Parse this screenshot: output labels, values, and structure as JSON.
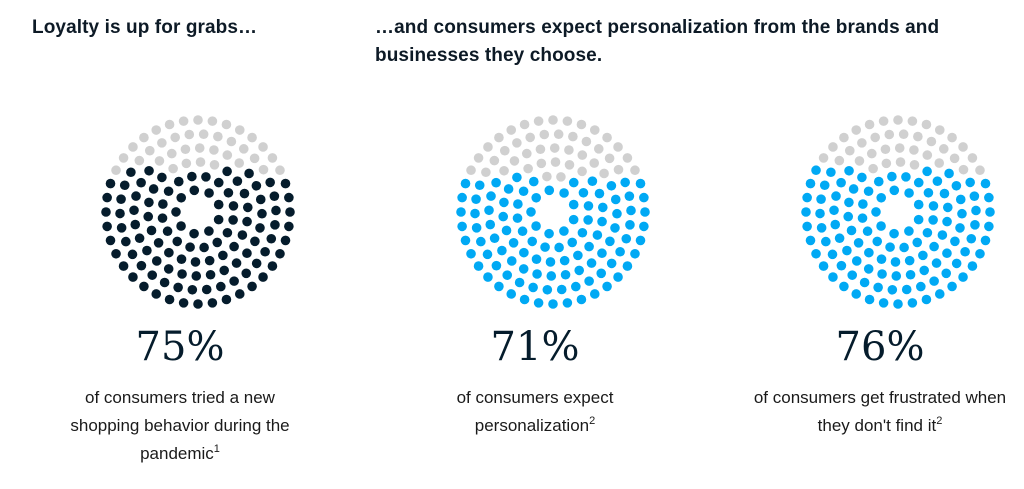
{
  "header": {
    "left": "Loyalty is up for grabs…",
    "right": "…and consumers expect personalization from the brands and businesses they choose."
  },
  "colors": {
    "dark": "#051c2c",
    "blue": "#00a9f4",
    "gray": "#d0d0d0"
  },
  "chart_data": [
    {
      "type": "dot-proportion",
      "value": 75,
      "label": "75%",
      "description": "of consumers tried a new shopping behavior during the pandemic",
      "footnote": "1",
      "fill_color": "#051c2c"
    },
    {
      "type": "dot-proportion",
      "value": 71,
      "label": "71%",
      "description": "of consumers expect personalization",
      "footnote": "2",
      "fill_color": "#00a9f4"
    },
    {
      "type": "dot-proportion",
      "value": 76,
      "label": "76%",
      "description": "of consumers get frustrated when they don't find it",
      "footnote": "2",
      "fill_color": "#00a9f4"
    }
  ]
}
